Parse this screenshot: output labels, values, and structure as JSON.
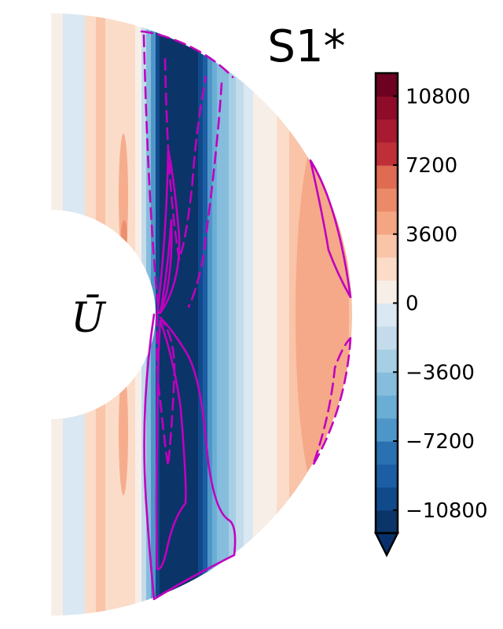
{
  "chart_data": {
    "type": "heatmap",
    "title": "S1*",
    "field_symbol": "Ū",
    "geometry": "meridional half-annulus (spherical shell slice)",
    "colormap": "diverging red-blue (RdBu_r), discrete 23 levels",
    "colorbar": {
      "min": -12000,
      "max": 12000,
      "step": 1200,
      "extend": "min",
      "ticks": [
        10800,
        7200,
        3600,
        0,
        -3600,
        -7200,
        -10800
      ],
      "tick_labels": [
        "10800",
        "7200",
        "3600",
        "0",
        "−3600",
        "−7200",
        "−10800"
      ]
    },
    "contour_overlay": {
      "color": "#c000c0",
      "solid": "positive",
      "dashed": "negative"
    },
    "colors": {
      "overlay": "#c000c0",
      "deep_blue": "#08306b",
      "deep_red": "#67001f"
    }
  }
}
